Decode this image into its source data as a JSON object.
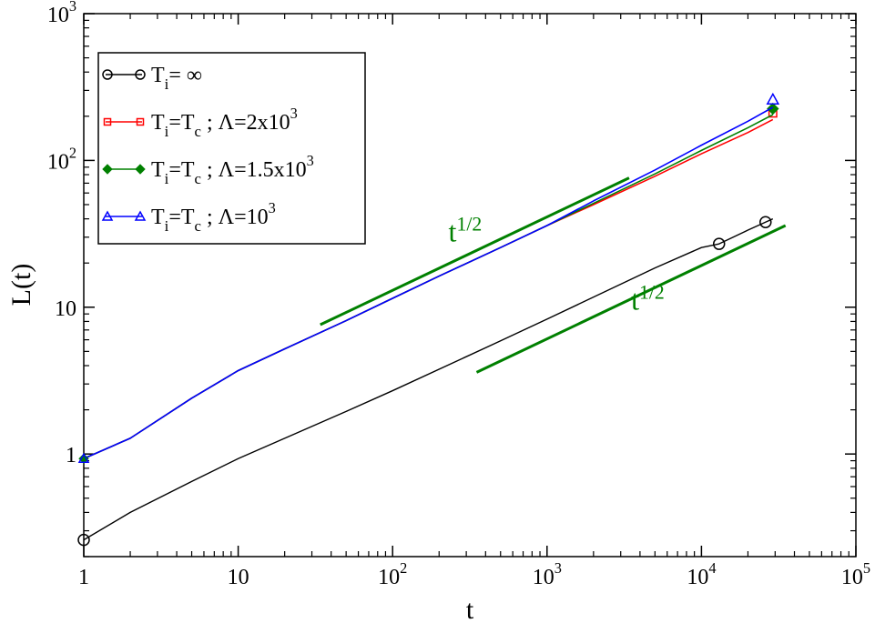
{
  "chart_data": {
    "type": "line",
    "xlabel": "t",
    "ylabel": "L(t)",
    "x_scale": "log",
    "y_scale": "log",
    "xlim": [
      1,
      100000
    ],
    "ylim": [
      0.2,
      1000
    ],
    "grid": false,
    "legend_position": "top-left",
    "x_ticks": [
      {
        "value": 1,
        "base": "1",
        "exp": ""
      },
      {
        "value": 10,
        "base": "10",
        "exp": ""
      },
      {
        "value": 100,
        "base": "10",
        "exp": "2"
      },
      {
        "value": 1000,
        "base": "10",
        "exp": "3"
      },
      {
        "value": 10000,
        "base": "10",
        "exp": "4"
      },
      {
        "value": 100000,
        "base": "10",
        "exp": "5"
      }
    ],
    "y_ticks": [
      {
        "value": 1,
        "base": "1",
        "exp": ""
      },
      {
        "value": 10,
        "base": "10",
        "exp": ""
      },
      {
        "value": 100,
        "base": "10",
        "exp": "2"
      },
      {
        "value": 1000,
        "base": "10",
        "exp": "3"
      }
    ],
    "series": [
      {
        "name": "T_i = ∞",
        "color": "#000000",
        "marker": "circle",
        "x": [
          1,
          2,
          5,
          10,
          50,
          100,
          500,
          1000,
          5000,
          10000,
          13000,
          20000,
          26000,
          29000
        ],
        "y": [
          0.26,
          0.4,
          0.65,
          0.93,
          1.95,
          2.7,
          5.9,
          8.3,
          18.5,
          25.5,
          27,
          33.5,
          38,
          40
        ],
        "marker_x": [
          1,
          13000,
          26000
        ],
        "marker_y": [
          0.26,
          27,
          38
        ]
      },
      {
        "name": "T_i=T_c ; Λ=2x10^3",
        "color": "#ff0000",
        "marker": "square",
        "x": [
          1,
          2,
          5,
          10,
          20,
          50,
          100,
          200,
          500,
          1000,
          2000,
          5000,
          10000,
          20000,
          29000
        ],
        "y": [
          0.93,
          1.28,
          2.4,
          3.7,
          5.2,
          8.1,
          11.5,
          16.3,
          25.5,
          36,
          50,
          78,
          111,
          155,
          190
        ],
        "marker_x": [
          29000
        ],
        "marker_y": [
          210
        ]
      },
      {
        "name": "T_i=T_c ; Λ=1.5x10^3",
        "color": "#008000",
        "marker": "diamond",
        "x": [
          1,
          2,
          5,
          10,
          20,
          50,
          100,
          200,
          500,
          1000,
          2000,
          5000,
          10000,
          20000,
          29000
        ],
        "y": [
          0.93,
          1.28,
          2.4,
          3.7,
          5.2,
          8.1,
          11.5,
          16.3,
          25.5,
          36,
          51,
          81,
          117,
          167,
          205
        ],
        "marker_x": [
          29000
        ],
        "marker_y": [
          225
        ]
      },
      {
        "name": "T_i=T_c ; Λ=10^3",
        "color": "#0000ff",
        "marker": "triangle",
        "x": [
          1,
          2,
          5,
          10,
          20,
          50,
          100,
          200,
          500,
          1000,
          2000,
          5000,
          10000,
          20000,
          29000
        ],
        "y": [
          0.93,
          1.28,
          2.4,
          3.7,
          5.2,
          8.1,
          11.5,
          16.3,
          25.5,
          36,
          53,
          86,
          127,
          185,
          230
        ],
        "marker_x": [
          29000
        ],
        "marker_y": [
          260
        ]
      }
    ],
    "reference_lines": [
      {
        "x": [
          34,
          3400
        ],
        "y": [
          7.6,
          76
        ],
        "color": "#008000"
      },
      {
        "x": [
          350,
          35000
        ],
        "y": [
          3.6,
          36
        ],
        "color": "#008000"
      }
    ],
    "annotations": [
      {
        "base": "t",
        "exp": "1/2",
        "x": 230,
        "y": 28,
        "color": "#008000"
      },
      {
        "base": "t",
        "exp": "1/2",
        "x": 3500,
        "y": 9.6,
        "color": "#008000"
      }
    ],
    "legend": [
      {
        "series": 0,
        "main": "T",
        "sub": "i",
        "rest": "= ∞",
        "exp": ""
      },
      {
        "series": 1,
        "main": "T",
        "sub": "i",
        "rest": "=T",
        "sub2": "c",
        "tail": " ; Λ=2x10",
        "exp": "3"
      },
      {
        "series": 2,
        "main": "T",
        "sub": "i",
        "rest": "=T",
        "sub2": "c",
        "tail": " ; Λ=1.5x10",
        "exp": "3"
      },
      {
        "series": 3,
        "main": "T",
        "sub": "i",
        "rest": "=T",
        "sub2": "c",
        "tail": " ; Λ=10",
        "exp": "3"
      }
    ]
  }
}
